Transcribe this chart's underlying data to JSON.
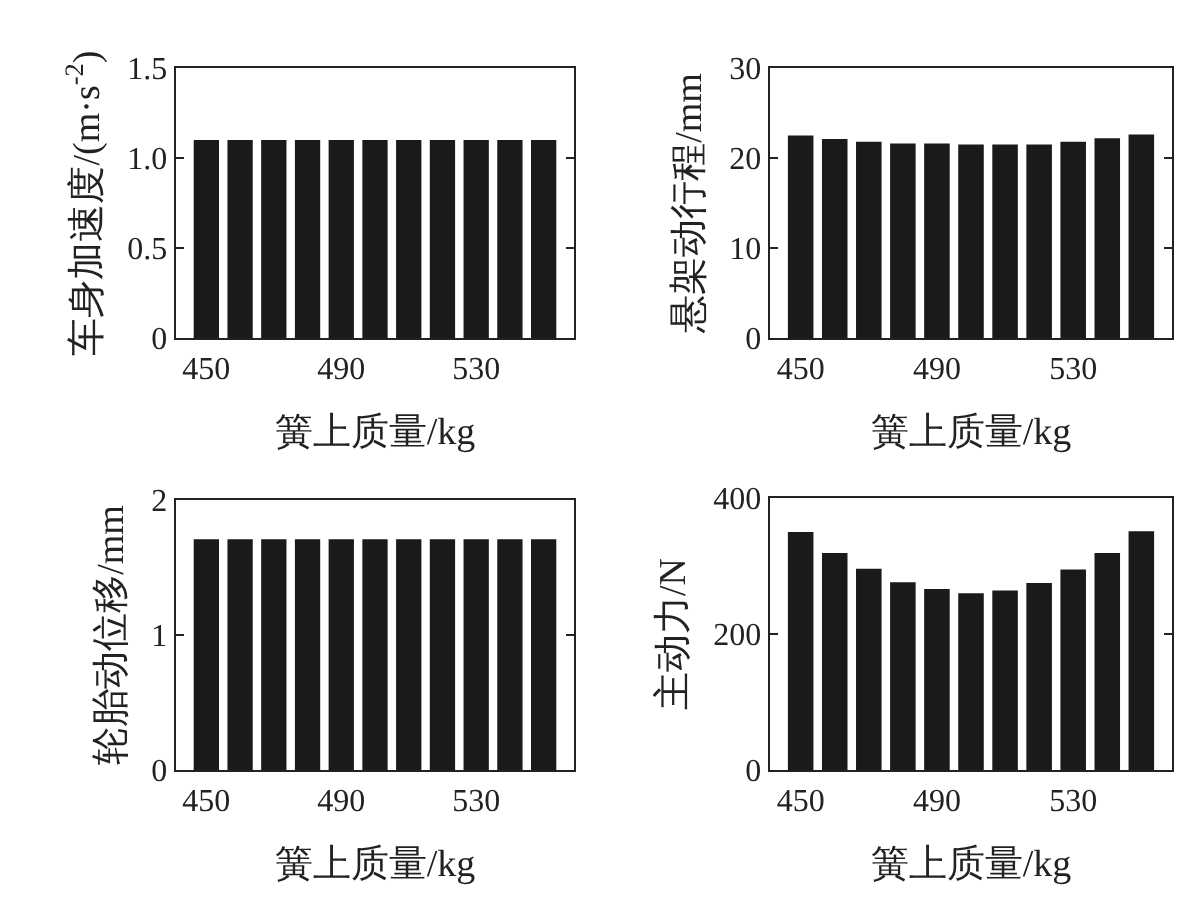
{
  "chart_data": [
    {
      "type": "bar",
      "x": [
        450,
        460,
        470,
        480,
        490,
        500,
        510,
        520,
        530,
        540,
        550
      ],
      "values": [
        1.1,
        1.1,
        1.1,
        1.1,
        1.1,
        1.1,
        1.1,
        1.1,
        1.1,
        1.1,
        1.1
      ],
      "color": "#1a1a1a",
      "xlim": [
        441,
        559
      ],
      "xticks": [
        450,
        490,
        530
      ],
      "ylim": [
        0,
        1.5
      ],
      "yticks": [
        0,
        0.5,
        {
          "value": 1,
          "label": "1.0"
        },
        1.5
      ],
      "xlabel": "簧上质量/kg",
      "ylabel": "车身加速度/(m·s$^{-2}$)",
      "grid": false
    },
    {
      "type": "bar",
      "x": [
        450,
        460,
        470,
        480,
        490,
        500,
        510,
        520,
        530,
        540,
        550
      ],
      "values": [
        22.5,
        22.1,
        21.8,
        21.6,
        21.6,
        21.5,
        21.5,
        21.5,
        21.8,
        22.2,
        22.6
      ],
      "color": "#1a1a1a",
      "xlim": [
        441,
        559
      ],
      "xticks": [
        450,
        490,
        530
      ],
      "ylim": [
        0,
        30
      ],
      "yticks": [
        0,
        10,
        20,
        30
      ],
      "xlabel": "簧上质量/kg",
      "ylabel": "悬架动行程/mm",
      "grid": false
    },
    {
      "type": "bar",
      "x": [
        450,
        460,
        470,
        480,
        490,
        500,
        510,
        520,
        530,
        540,
        550
      ],
      "values": [
        1.71,
        1.71,
        1.71,
        1.71,
        1.71,
        1.71,
        1.71,
        1.71,
        1.71,
        1.71,
        1.71
      ],
      "color": "#1a1a1a",
      "xlim": [
        441,
        559
      ],
      "xticks": [
        450,
        490,
        530
      ],
      "ylim": [
        0,
        2
      ],
      "yticks": [
        0,
        1,
        2
      ],
      "xlabel": "簧上质量/kg",
      "ylabel": "轮胎动位移/mm",
      "grid": false
    },
    {
      "type": "bar",
      "x": [
        450,
        460,
        470,
        480,
        490,
        500,
        510,
        520,
        530,
        540,
        550
      ],
      "values": [
        350,
        319,
        296,
        276,
        266,
        260,
        264,
        275,
        295,
        319,
        351
      ],
      "color": "#1a1a1a",
      "xlim": [
        441,
        559
      ],
      "xticks": [
        450,
        490,
        530
      ],
      "ylim": [
        0,
        400
      ],
      "yticks": [
        0,
        200,
        400
      ],
      "xlabel": "簧上质量/kg",
      "ylabel": "主动力/N",
      "grid": false
    }
  ]
}
